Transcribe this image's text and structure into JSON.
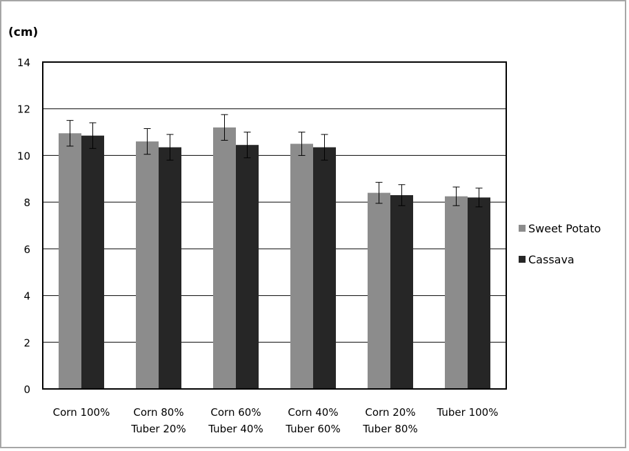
{
  "colors": {
    "series1": "#8c8c8c",
    "series2": "#262626",
    "grid": "#000000"
  },
  "chart_data": {
    "type": "bar",
    "ylabel": "(cm)",
    "ylim": [
      0,
      14
    ],
    "yticks": [
      "0",
      "2",
      "4",
      "6",
      "8",
      "10",
      "12",
      "14"
    ],
    "grid": true,
    "legend_position": "right",
    "categories": [
      [
        "Corn 100%"
      ],
      [
        "Corn 80%",
        "Tuber  20%"
      ],
      [
        "Corn 60%",
        "Tuber  40%"
      ],
      [
        "Corn 40%",
        "Tuber 60%"
      ],
      [
        "Corn 20%",
        "Tuber 80%"
      ],
      [
        "Tuber 100%"
      ]
    ],
    "series": [
      {
        "name": "Sweet Potato",
        "values": [
          10.95,
          10.6,
          11.2,
          10.5,
          8.4,
          8.25
        ],
        "errors": [
          0.55,
          0.55,
          0.55,
          0.5,
          0.45,
          0.4
        ]
      },
      {
        "name": "Cassava",
        "values": [
          10.85,
          10.35,
          10.45,
          10.35,
          8.3,
          8.2
        ],
        "errors": [
          0.55,
          0.55,
          0.55,
          0.55,
          0.45,
          0.4
        ]
      }
    ]
  }
}
